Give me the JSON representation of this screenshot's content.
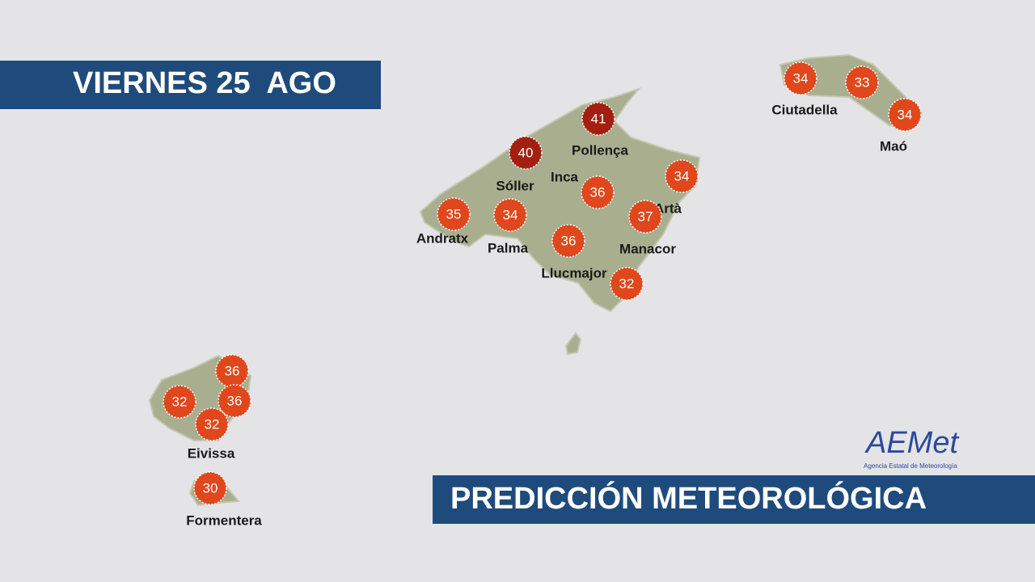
{
  "header": {
    "date": "VIERNES 25  AGO"
  },
  "footer": {
    "title": "PREDICCIÓN METEOROLÓGICA"
  },
  "logo": {
    "name": "AEMet",
    "subtitle": "Agencia Estatal de Meteorología"
  },
  "places": [
    "Ciutadella",
    "Maó",
    "Pollença",
    "Sóller",
    "Inca",
    "Artà",
    "Andratx",
    "Palma",
    "Manacor",
    "Llucmajor",
    "Eivissa",
    "Formentera"
  ],
  "temperatures": [
    41,
    40,
    34,
    36,
    35,
    34,
    37,
    36,
    32,
    34,
    33,
    34,
    36,
    32,
    36,
    32,
    30
  ]
}
